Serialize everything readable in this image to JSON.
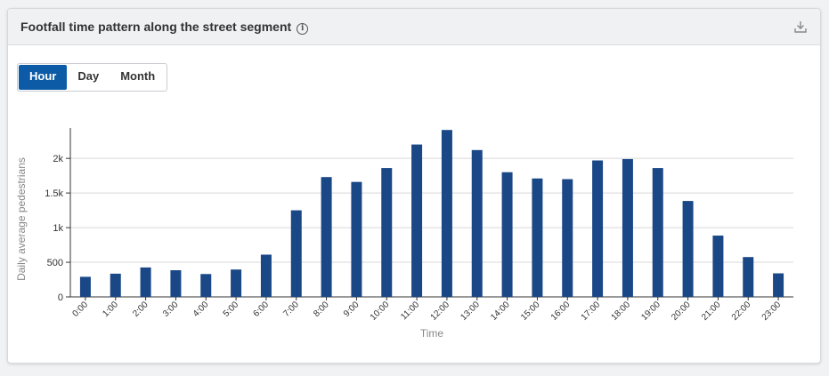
{
  "header": {
    "title": "Footfall time pattern along the street segment"
  },
  "tabs": [
    {
      "label": "Hour",
      "active": true
    },
    {
      "label": "Day",
      "active": false
    },
    {
      "label": "Month",
      "active": false
    }
  ],
  "colors": {
    "bar": "#1a4786",
    "active_tab": "#0d5ba6"
  },
  "chart_data": {
    "type": "bar",
    "title": "",
    "xlabel": "Time",
    "ylabel": "Daily average pedestrians",
    "ylim": [
      0,
      2400
    ],
    "yticks": [
      0,
      500,
      1000,
      1500,
      2000
    ],
    "ytick_labels": [
      "0",
      "500",
      "1k",
      "1.5k",
      "2k"
    ],
    "grid": true,
    "categories": [
      "0:00",
      "1:00",
      "2:00",
      "3:00",
      "4:00",
      "5:00",
      "6:00",
      "7:00",
      "8:00",
      "9:00",
      "10:00",
      "11:00",
      "12:00",
      "13:00",
      "14:00",
      "15:00",
      "16:00",
      "17:00",
      "18:00",
      "19:00",
      "20:00",
      "21:00",
      "22:00",
      "23:00"
    ],
    "values": [
      290,
      335,
      425,
      385,
      330,
      395,
      610,
      1250,
      1730,
      1660,
      1860,
      2200,
      2410,
      2120,
      1800,
      1710,
      1700,
      1970,
      1990,
      1860,
      1385,
      885,
      575,
      340
    ]
  }
}
